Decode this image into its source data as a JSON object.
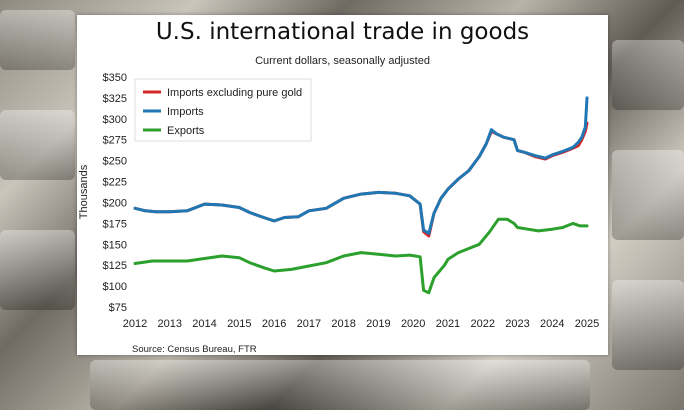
{
  "chart_data": {
    "type": "line",
    "title": "U.S. international trade in goods",
    "subtitle": "Current dollars, seasonally adjusted",
    "ylabel": "Thousands",
    "source": "Source: Census Bureau, FTR",
    "ylim": [
      75,
      350
    ],
    "xlim": [
      2012,
      2025.2
    ],
    "y_ticks": [
      "$75",
      "$100",
      "$125",
      "$150",
      "$175",
      "$200",
      "$225",
      "$250",
      "$275",
      "$300",
      "$325",
      "$350"
    ],
    "y_tick_values": [
      75,
      100,
      125,
      150,
      175,
      200,
      225,
      250,
      275,
      300,
      325,
      350
    ],
    "x_ticks": [
      "2012",
      "2013",
      "2014",
      "2015",
      "2016",
      "2017",
      "2018",
      "2019",
      "2020",
      "2021",
      "2022",
      "2023",
      "2024",
      "2025"
    ],
    "x_tick_values": [
      2012,
      2013,
      2014,
      2015,
      2016,
      2017,
      2018,
      2019,
      2020,
      2021,
      2022,
      2023,
      2024,
      2025
    ],
    "grid": false,
    "legend_placement": "top-left",
    "series": [
      {
        "name": "Imports excluding pure gold",
        "color": "#d62728",
        "x": [
          2012,
          2012.3,
          2012.6,
          2013,
          2013.5,
          2014,
          2014.5,
          2015,
          2015.3,
          2015.7,
          2016,
          2016.3,
          2016.7,
          2017,
          2017.5,
          2018,
          2018.5,
          2019,
          2019.5,
          2019.9,
          2020.2,
          2020.3,
          2020.45,
          2020.6,
          2020.8,
          2021,
          2021.3,
          2021.6,
          2021.9,
          2022.1,
          2022.25,
          2022.4,
          2022.6,
          2022.9,
          2023,
          2023.2,
          2023.5,
          2023.8,
          2024,
          2024.3,
          2024.6,
          2024.75,
          2024.85,
          2024.95,
          2025
        ],
        "y": [
          193,
          190,
          189,
          189,
          190,
          198,
          197,
          194,
          188,
          182,
          178,
          182,
          183,
          190,
          193,
          205,
          210,
          212,
          211,
          208,
          198,
          165,
          160,
          187,
          205,
          216,
          228,
          238,
          255,
          270,
          285,
          282,
          278,
          275,
          262,
          260,
          255,
          252,
          256,
          260,
          265,
          268,
          275,
          285,
          295
        ]
      },
      {
        "name": "Imports",
        "color": "#1f77b4",
        "x": [
          2012,
          2012.3,
          2012.6,
          2013,
          2013.5,
          2014,
          2014.5,
          2015,
          2015.3,
          2015.7,
          2016,
          2016.3,
          2016.7,
          2017,
          2017.5,
          2018,
          2018.5,
          2019,
          2019.5,
          2019.9,
          2020.2,
          2020.3,
          2020.45,
          2020.6,
          2020.8,
          2021,
          2021.3,
          2021.6,
          2021.9,
          2022.1,
          2022.25,
          2022.4,
          2022.6,
          2022.9,
          2023,
          2023.2,
          2023.5,
          2023.8,
          2024,
          2024.3,
          2024.6,
          2024.75,
          2024.85,
          2024.95,
          2025
        ],
        "y": [
          193,
          190,
          189,
          189,
          190,
          198,
          197,
          194,
          188,
          182,
          178,
          182,
          183,
          190,
          193,
          205,
          210,
          212,
          211,
          208,
          198,
          167,
          163,
          187,
          205,
          216,
          228,
          238,
          255,
          270,
          287,
          282,
          278,
          275,
          262,
          260,
          256,
          253,
          257,
          261,
          266,
          272,
          278,
          290,
          325
        ]
      },
      {
        "name": "Exports",
        "color": "#2ca02c",
        "x": [
          2012,
          2012.5,
          2013,
          2013.5,
          2014,
          2014.5,
          2015,
          2015.3,
          2015.7,
          2016,
          2016.5,
          2017,
          2017.5,
          2018,
          2018.5,
          2019,
          2019.5,
          2019.9,
          2020.2,
          2020.3,
          2020.45,
          2020.6,
          2020.9,
          2021,
          2021.3,
          2021.6,
          2021.9,
          2022.2,
          2022.45,
          2022.7,
          2022.9,
          2023,
          2023.3,
          2023.6,
          2024,
          2024.3,
          2024.6,
          2024.8,
          2025
        ],
        "y": [
          127,
          130,
          130,
          130,
          133,
          136,
          134,
          128,
          122,
          118,
          120,
          124,
          128,
          136,
          140,
          138,
          136,
          137,
          135,
          95,
          92,
          110,
          125,
          132,
          140,
          145,
          150,
          165,
          180,
          180,
          175,
          170,
          168,
          166,
          168,
          170,
          175,
          172,
          172
        ]
      }
    ]
  }
}
